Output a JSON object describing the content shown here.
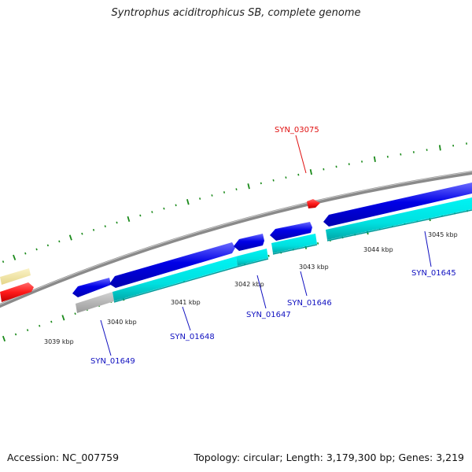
{
  "title": "Syntrophus aciditrophicus SB, complete genome",
  "footer": {
    "accession": "Accession: NC_007759",
    "topology": "Topology: circular; Length: 3,179,300 bp; Genes: 3,219"
  },
  "colors": {
    "backbone": "#8a8a8a",
    "backbone_highlight": "#c8c8c8",
    "forward_cds": "#0000e6",
    "forward_cds_highlight": "#6a6aff",
    "rna_track": "#00e5e5",
    "rna_track_dark": "#009a9a",
    "grey_feature": "#b4b4b4",
    "pale_feature": "#f3e7a5",
    "red_feature": "#ff1a1a",
    "tick": "#1a8a1a",
    "gene_label_blue": "#1010c0",
    "gene_label_red": "#e01010"
  },
  "tick_labels": [
    "3039 kbp",
    "3040 kbp",
    "3041 kbp",
    "3042 kbp",
    "3043 kbp",
    "3044 kbp",
    "3045 kbp"
  ],
  "gene_labels": [
    {
      "id": "SYN_01649",
      "color": "blue"
    },
    {
      "id": "SYN_01648",
      "color": "blue"
    },
    {
      "id": "SYN_01647",
      "color": "blue"
    },
    {
      "id": "SYN_01646",
      "color": "blue"
    },
    {
      "id": "SYN_01645",
      "color": "blue"
    },
    {
      "id": "SYN_03075",
      "color": "red"
    }
  ]
}
